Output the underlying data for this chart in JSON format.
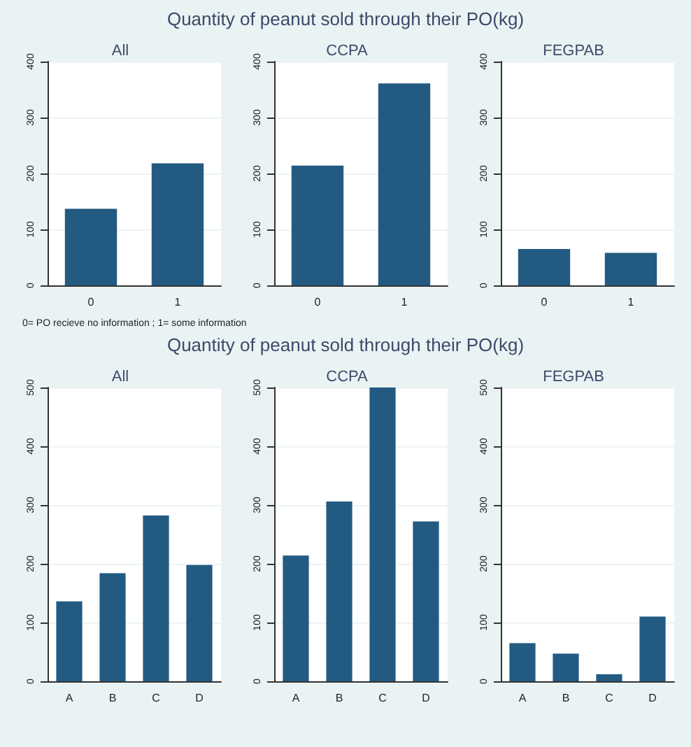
{
  "chart_data": [
    {
      "type": "bar",
      "title": "Quantity of peanut sold through their PO(kg)",
      "subtitle": "All",
      "categories": [
        "0",
        "1"
      ],
      "values": [
        137,
        218
      ],
      "color": "#235a82",
      "ylim": [
        0,
        400
      ],
      "yticks": [
        0,
        100,
        200,
        300,
        400
      ],
      "grid": "y",
      "annotations": [
        "0= PO recieve no information ; 1= some information"
      ]
    },
    {
      "type": "bar",
      "subtitle": "CCPA",
      "categories": [
        "0",
        "1"
      ],
      "values": [
        214,
        361
      ],
      "color": "#235a82",
      "ylim": [
        0,
        400
      ],
      "yticks": [
        0,
        100,
        200,
        300,
        400
      ],
      "grid": "y"
    },
    {
      "type": "bar",
      "subtitle": "FEGPAB",
      "categories": [
        "0",
        "1"
      ],
      "values": [
        65,
        58
      ],
      "color": "#235a82",
      "ylim": [
        0,
        400
      ],
      "yticks": [
        0,
        100,
        200,
        300,
        400
      ],
      "grid": "y"
    },
    {
      "type": "bar",
      "title": "Quantity of peanut sold through their PO(kg)",
      "subtitle": "All",
      "categories": [
        "A",
        "B",
        "C",
        "D"
      ],
      "values": [
        136,
        184,
        282,
        198
      ],
      "color": "#235a82",
      "ylim": [
        0,
        500
      ],
      "yticks": [
        0,
        100,
        200,
        300,
        400,
        500
      ],
      "grid": "y"
    },
    {
      "type": "bar",
      "subtitle": "CCPA",
      "categories": [
        "A",
        "B",
        "C",
        "D"
      ],
      "values": [
        214,
        306,
        500,
        272
      ],
      "color": "#235a82",
      "ylim": [
        0,
        500
      ],
      "yticks": [
        0,
        100,
        200,
        300,
        400,
        500
      ],
      "grid": "y"
    },
    {
      "type": "bar",
      "subtitle": "FEGPAB",
      "categories": [
        "A",
        "B",
        "C",
        "D"
      ],
      "values": [
        65,
        47,
        12,
        110
      ],
      "color": "#235a82",
      "ylim": [
        0,
        500
      ],
      "yticks": [
        0,
        100,
        200,
        300,
        400,
        500
      ],
      "grid": "y"
    }
  ]
}
